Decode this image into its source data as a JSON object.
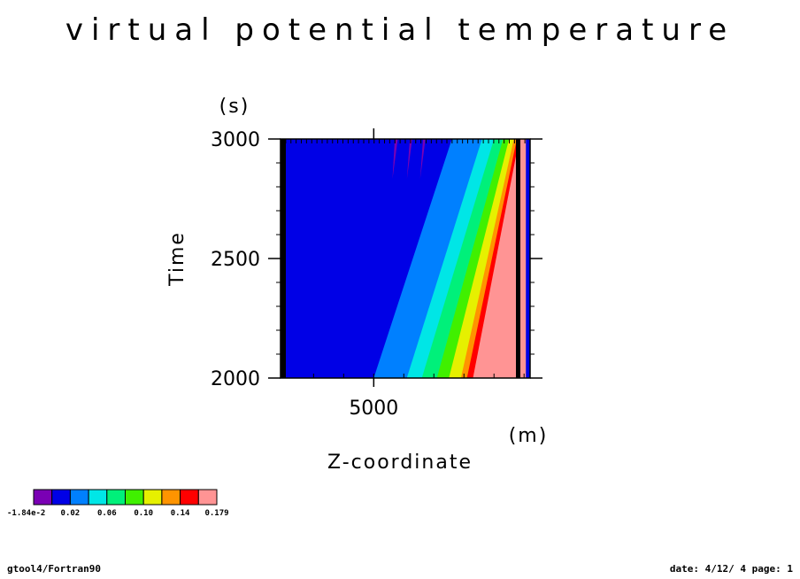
{
  "chart_data": {
    "type": "heatmap",
    "title": "virtual potential temperature",
    "xlabel": "Z-coordinate",
    "xunit": "(m)",
    "ylabel": "Time",
    "yunit": "(s)",
    "xlim": [
      3450,
      7600
    ],
    "ylim": [
      2000,
      3000
    ],
    "x_ticks": [
      5000
    ],
    "y_ticks": [
      2000,
      2500,
      3000
    ],
    "colorbar": {
      "colors": [
        "#7a00b4",
        "#0000e6",
        "#0080ff",
        "#00e6e6",
        "#00f07a",
        "#40f000",
        "#e6f000",
        "#ff9400",
        "#ff0000",
        "#ff9494"
      ],
      "labels": [
        "-1.84e-2",
        "0.02",
        "0.06",
        "0.10",
        "0.14",
        "0.179"
      ]
    },
    "field_description_bands": [
      {
        "level": 1,
        "x_at_2000": 5000,
        "x_at_3000": 6300
      },
      {
        "level": 2,
        "x_at_2000": 5550,
        "x_at_3000": 6800
      },
      {
        "level": 3,
        "x_at_2000": 5800,
        "x_at_3000": 7000
      },
      {
        "level": 4,
        "x_at_2000": 6050,
        "x_at_3000": 7150
      },
      {
        "level": 5,
        "x_at_2000": 6250,
        "x_at_3000": 7250
      },
      {
        "level": 6,
        "x_at_2000": 6450,
        "x_at_3000": 7330
      },
      {
        "level": 7,
        "x_at_2000": 6550,
        "x_at_3000": 7380
      },
      {
        "level": 8,
        "x_at_2000": 6650,
        "x_at_3000": 7420
      },
      {
        "level": 9,
        "x_at_2000": 6750,
        "x_at_3000": 7460
      }
    ]
  },
  "footer": {
    "left": "gtool4/Fortran90",
    "right": "date: 4/12/ 4 page: 1"
  }
}
